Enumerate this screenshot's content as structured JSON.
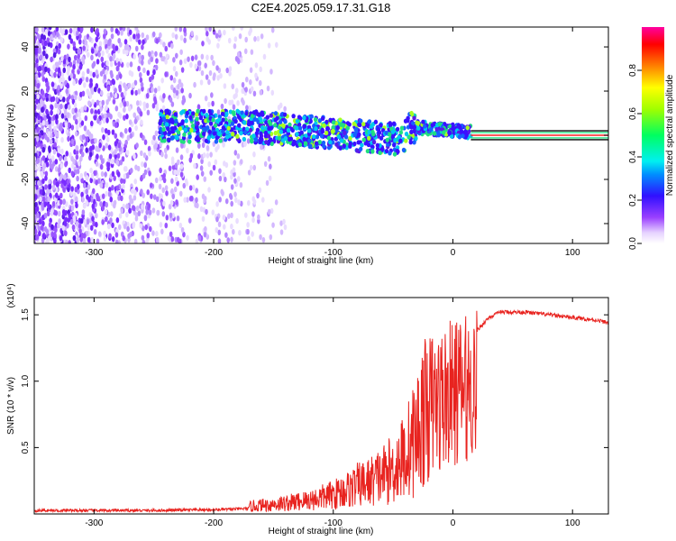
{
  "title": "C2E4.2025.059.17.31.G18",
  "chart_data": [
    {
      "type": "heatmap",
      "xlabel": "Height of straight line (km)",
      "ylabel": "Frequency (Hz)",
      "xlim": [
        -350,
        130
      ],
      "ylim": [
        -49,
        49
      ],
      "xticks": [
        "-300",
        "-200",
        "-100",
        "0",
        "100"
      ],
      "yticks": [
        "-40",
        "-20",
        "0",
        "20",
        "40"
      ],
      "colorbar": {
        "label": "Normalized spectral amplitude",
        "range": [
          0,
          1
        ],
        "ticks": [
          "0.0",
          "0.2",
          "0.4",
          "0.6",
          "0.8"
        ]
      }
    },
    {
      "type": "line",
      "xlabel": "Height of straight line (km)",
      "ylabel": "SNR (10 * v/v)",
      "y_multiplier": "(x10⁴)",
      "xlim": [
        -350,
        130
      ],
      "ylim": [
        0,
        1.63
      ],
      "xticks": [
        "-300",
        "-200",
        "-100",
        "0",
        "100"
      ],
      "yticks": [
        "0.5",
        "1.0",
        "1.5"
      ],
      "color": "#e8231f",
      "series": [
        {
          "x": [
            -350,
            -300,
            -250,
            -200,
            -180,
            -160,
            -140,
            -120,
            -100,
            -90,
            -80,
            -70,
            -60,
            -50,
            -40,
            -30,
            -25,
            -20,
            -15,
            -10,
            -5,
            0,
            10,
            20,
            30,
            40,
            60,
            80,
            100,
            120,
            130
          ],
          "values": [
            0.04,
            0.04,
            0.04,
            0.05,
            0.06,
            0.08,
            0.1,
            0.13,
            0.18,
            0.22,
            0.27,
            0.3,
            0.36,
            0.42,
            0.55,
            0.75,
            0.95,
            1.05,
            1.1,
            1.15,
            1.2,
            1.25,
            1.3,
            1.38,
            1.48,
            1.52,
            1.52,
            1.5,
            1.48,
            1.46,
            1.44
          ]
        }
      ]
    }
  ]
}
